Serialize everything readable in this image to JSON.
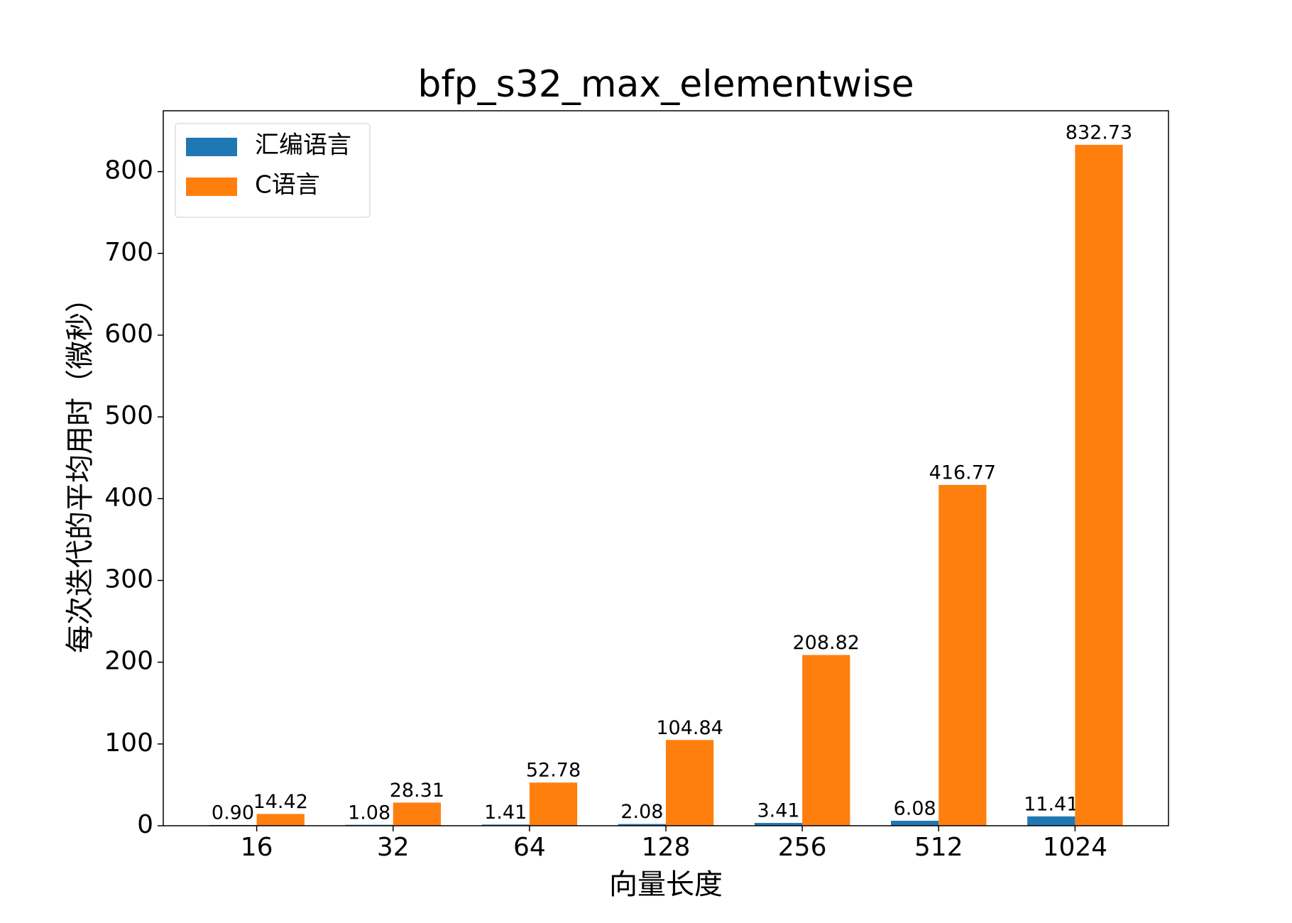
{
  "chart_data": {
    "type": "bar",
    "title": "bfp_s32_max_elementwise",
    "x_label": "向量长度",
    "y_label": "每次迭代的平均用时（微秒）",
    "categories": [
      "16",
      "32",
      "64",
      "128",
      "256",
      "512",
      "1024"
    ],
    "series": [
      {
        "name": "汇编语言",
        "color": "#1f77b4",
        "values": [
          0.9,
          1.08,
          1.41,
          2.08,
          3.41,
          6.08,
          11.41
        ],
        "value_labels": [
          "0.90",
          "1.08",
          "1.41",
          "2.08",
          "3.41",
          "6.08",
          "11.41"
        ]
      },
      {
        "name": "C语言",
        "color": "#ff7f0e",
        "values": [
          14.42,
          28.31,
          52.78,
          104.84,
          208.82,
          416.77,
          832.73
        ],
        "value_labels": [
          "14.42",
          "28.31",
          "52.78",
          "104.84",
          "208.82",
          "416.77",
          "832.73"
        ]
      }
    ],
    "ylim": [
      0,
      874.4
    ],
    "yticks": [
      0,
      100,
      200,
      300,
      400,
      500,
      600,
      700,
      800
    ],
    "legend": "upper left",
    "grid": false
  }
}
